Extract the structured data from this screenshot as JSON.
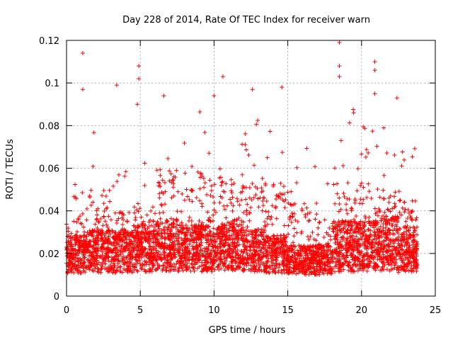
{
  "chart_data": {
    "type": "scatter",
    "title": "Day 228 of 2014, Rate Of TEC Index for receiver warn",
    "xlabel": "GPS time / hours",
    "ylabel": "ROTI / TECUs",
    "xlim": [
      0,
      25
    ],
    "ylim": [
      0,
      0.12
    ],
    "x_ticks": [
      0,
      5,
      10,
      15,
      20,
      25
    ],
    "y_ticks": [
      0,
      0.02,
      0.04,
      0.06,
      0.08,
      0.1,
      0.12
    ],
    "x_tick_labels": [
      "0",
      "5",
      "10",
      "15",
      "20",
      "25"
    ],
    "y_tick_labels": [
      "0",
      "0.02",
      "0.04",
      "0.06",
      "0.08",
      "0.1",
      "0.12"
    ],
    "grid": true,
    "marker": "+",
    "color": "#ff0000",
    "series": [
      {
        "name": "ROTI",
        "notable_points": [
          {
            "x": 1.1,
            "y": 0.114
          },
          {
            "x": 1.1,
            "y": 0.097
          },
          {
            "x": 3.4,
            "y": 0.099
          },
          {
            "x": 4.9,
            "y": 0.108
          },
          {
            "x": 4.9,
            "y": 0.102
          },
          {
            "x": 4.8,
            "y": 0.09
          },
          {
            "x": 6.6,
            "y": 0.094
          },
          {
            "x": 10.0,
            "y": 0.094
          },
          {
            "x": 10.6,
            "y": 0.103
          },
          {
            "x": 12.6,
            "y": 0.097
          },
          {
            "x": 14.6,
            "y": 0.098
          },
          {
            "x": 18.5,
            "y": 0.119
          },
          {
            "x": 18.5,
            "y": 0.108
          },
          {
            "x": 18.5,
            "y": 0.103
          },
          {
            "x": 20.9,
            "y": 0.11
          },
          {
            "x": 20.9,
            "y": 0.106
          },
          {
            "x": 20.9,
            "y": 0.095
          },
          {
            "x": 22.4,
            "y": 0.093
          }
        ],
        "segments": [
          {
            "x0": 0.0,
            "x1": 1.5,
            "base": 0.014,
            "spread": 0.018,
            "peak": 0.055,
            "count": 260
          },
          {
            "x0": 1.5,
            "x1": 3.0,
            "base": 0.015,
            "spread": 0.02,
            "peak": 0.078,
            "count": 260
          },
          {
            "x0": 3.0,
            "x1": 4.5,
            "base": 0.015,
            "spread": 0.02,
            "peak": 0.06,
            "count": 250
          },
          {
            "x0": 4.5,
            "x1": 6.0,
            "base": 0.016,
            "spread": 0.022,
            "peak": 0.067,
            "count": 260
          },
          {
            "x0": 6.0,
            "x1": 7.5,
            "base": 0.017,
            "spread": 0.024,
            "peak": 0.094,
            "count": 270
          },
          {
            "x0": 7.5,
            "x1": 9.0,
            "base": 0.016,
            "spread": 0.022,
            "peak": 0.078,
            "count": 260
          },
          {
            "x0": 9.0,
            "x1": 10.5,
            "base": 0.016,
            "spread": 0.022,
            "peak": 0.094,
            "count": 270
          },
          {
            "x0": 10.5,
            "x1": 12.0,
            "base": 0.017,
            "spread": 0.024,
            "peak": 0.09,
            "count": 270
          },
          {
            "x0": 12.0,
            "x1": 13.5,
            "base": 0.016,
            "spread": 0.02,
            "peak": 0.085,
            "count": 260
          },
          {
            "x0": 13.5,
            "x1": 15.0,
            "base": 0.014,
            "spread": 0.018,
            "peak": 0.085,
            "count": 250
          },
          {
            "x0": 15.0,
            "x1": 16.5,
            "base": 0.012,
            "spread": 0.014,
            "peak": 0.07,
            "count": 240
          },
          {
            "x0": 16.5,
            "x1": 18.0,
            "base": 0.012,
            "spread": 0.014,
            "peak": 0.062,
            "count": 230
          },
          {
            "x0": 18.0,
            "x1": 19.5,
            "base": 0.016,
            "spread": 0.024,
            "peak": 0.088,
            "count": 270
          },
          {
            "x0": 19.5,
            "x1": 21.0,
            "base": 0.016,
            "spread": 0.024,
            "peak": 0.084,
            "count": 270
          },
          {
            "x0": 21.0,
            "x1": 22.5,
            "base": 0.017,
            "spread": 0.026,
            "peak": 0.08,
            "count": 270
          },
          {
            "x0": 22.5,
            "x1": 23.8,
            "base": 0.015,
            "spread": 0.022,
            "peak": 0.07,
            "count": 240
          }
        ]
      }
    ]
  }
}
